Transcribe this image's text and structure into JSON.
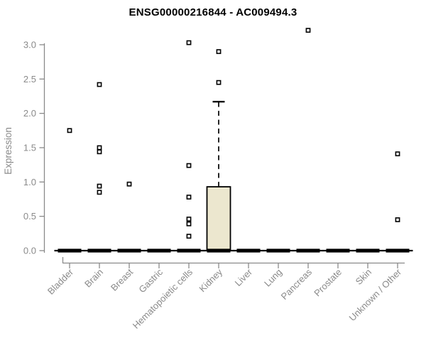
{
  "chart_data": {
    "type": "boxplot",
    "title": "ENSG00000216844 - AC009494.3",
    "ylabel": "Expression",
    "xlabel": "",
    "categories": [
      "Bladder",
      "Brain",
      "Breast",
      "Gastric",
      "Hematopoietic cells",
      "Kidney",
      "Liver",
      "Lung",
      "Pancreas",
      "Prostate",
      "Skin",
      "Unknown / Other"
    ],
    "y_ticks": [
      0,
      0.5,
      1,
      1.5,
      2,
      2.5,
      3
    ],
    "y_tick_labels": [
      "0.0",
      "0.5",
      "1.0",
      "1.5",
      "2.0",
      "2.5",
      "3.0"
    ],
    "ylim": [
      0,
      3.3
    ],
    "grid": false,
    "legend_position": "none",
    "colors": {
      "background": "#ffffff",
      "title": "#000000",
      "axis": "#8a8a8a",
      "labels": "#8a8a8a",
      "box_fill": "#ece7cf",
      "box_stroke": "#000000",
      "marker": "#000000"
    },
    "series": [
      {
        "category": "Bladder",
        "q1": 0,
        "median": 0,
        "q3": 0,
        "whisker_low": 0,
        "whisker_high": 0,
        "outliers": [
          1.75
        ]
      },
      {
        "category": "Brain",
        "q1": 0,
        "median": 0,
        "q3": 0,
        "whisker_low": 0,
        "whisker_high": 0,
        "outliers": [
          2.42,
          1.5,
          1.44,
          0.94,
          0.85
        ]
      },
      {
        "category": "Breast",
        "q1": 0,
        "median": 0,
        "q3": 0,
        "whisker_low": 0,
        "whisker_high": 0,
        "outliers": [
          0.97
        ]
      },
      {
        "category": "Gastric",
        "q1": 0,
        "median": 0,
        "q3": 0,
        "whisker_low": 0,
        "whisker_high": 0,
        "outliers": []
      },
      {
        "category": "Hematopoietic cells",
        "q1": 0,
        "median": 0,
        "q3": 0,
        "whisker_low": 0,
        "whisker_high": 0,
        "outliers": [
          3.03,
          1.24,
          0.78,
          0.46,
          0.39,
          0.21
        ]
      },
      {
        "category": "Kidney",
        "q1": 0,
        "median": 0,
        "q3": 0.93,
        "whisker_low": 0,
        "whisker_high": 2.17,
        "outliers": [
          2.9,
          2.45
        ]
      },
      {
        "category": "Liver",
        "q1": 0,
        "median": 0,
        "q3": 0,
        "whisker_low": 0,
        "whisker_high": 0,
        "outliers": []
      },
      {
        "category": "Lung",
        "q1": 0,
        "median": 0,
        "q3": 0,
        "whisker_low": 0,
        "whisker_high": 0,
        "outliers": []
      },
      {
        "category": "Pancreas",
        "q1": 0,
        "median": 0,
        "q3": 0,
        "whisker_low": 0,
        "whisker_high": 0,
        "outliers": [
          3.21
        ]
      },
      {
        "category": "Prostate",
        "q1": 0,
        "median": 0,
        "q3": 0,
        "whisker_low": 0,
        "whisker_high": 0,
        "outliers": []
      },
      {
        "category": "Skin",
        "q1": 0,
        "median": 0,
        "q3": 0,
        "whisker_low": 0,
        "whisker_high": 0,
        "outliers": []
      },
      {
        "category": "Unknown / Other",
        "q1": 0,
        "median": 0,
        "q3": 0,
        "whisker_low": 0,
        "whisker_high": 0,
        "outliers": [
          1.41,
          0.45
        ]
      }
    ]
  }
}
